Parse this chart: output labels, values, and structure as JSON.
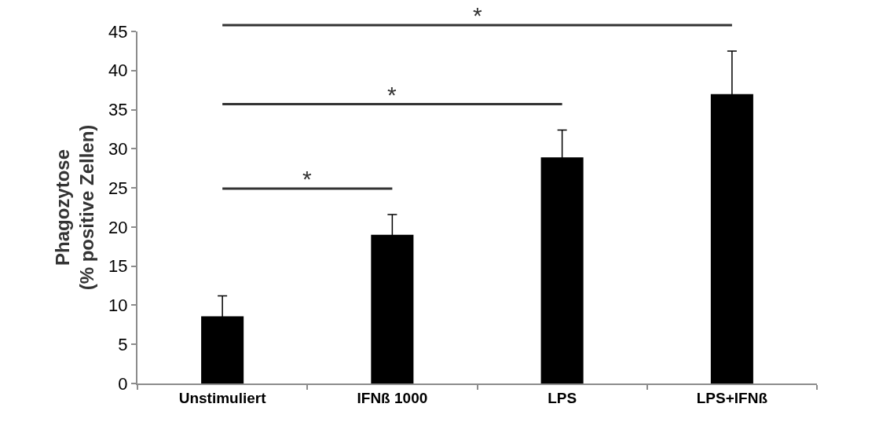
{
  "chart_data": {
    "type": "bar",
    "ylabel": "Phagozytose\n(% positive Zellen)",
    "categories": [
      "Unstimuliert",
      "IFNß 1000",
      "LPS",
      "LPS+IFNß"
    ],
    "values": [
      8.6,
      19.0,
      28.9,
      37.0
    ],
    "errors": [
      2.6,
      2.6,
      3.5,
      5.5
    ],
    "color": "#000000",
    "ylim": [
      0,
      45
    ],
    "yticks": [
      0,
      5,
      10,
      15,
      20,
      25,
      30,
      35,
      40,
      45
    ],
    "annotations": [
      "*",
      "*",
      "*"
    ]
  }
}
